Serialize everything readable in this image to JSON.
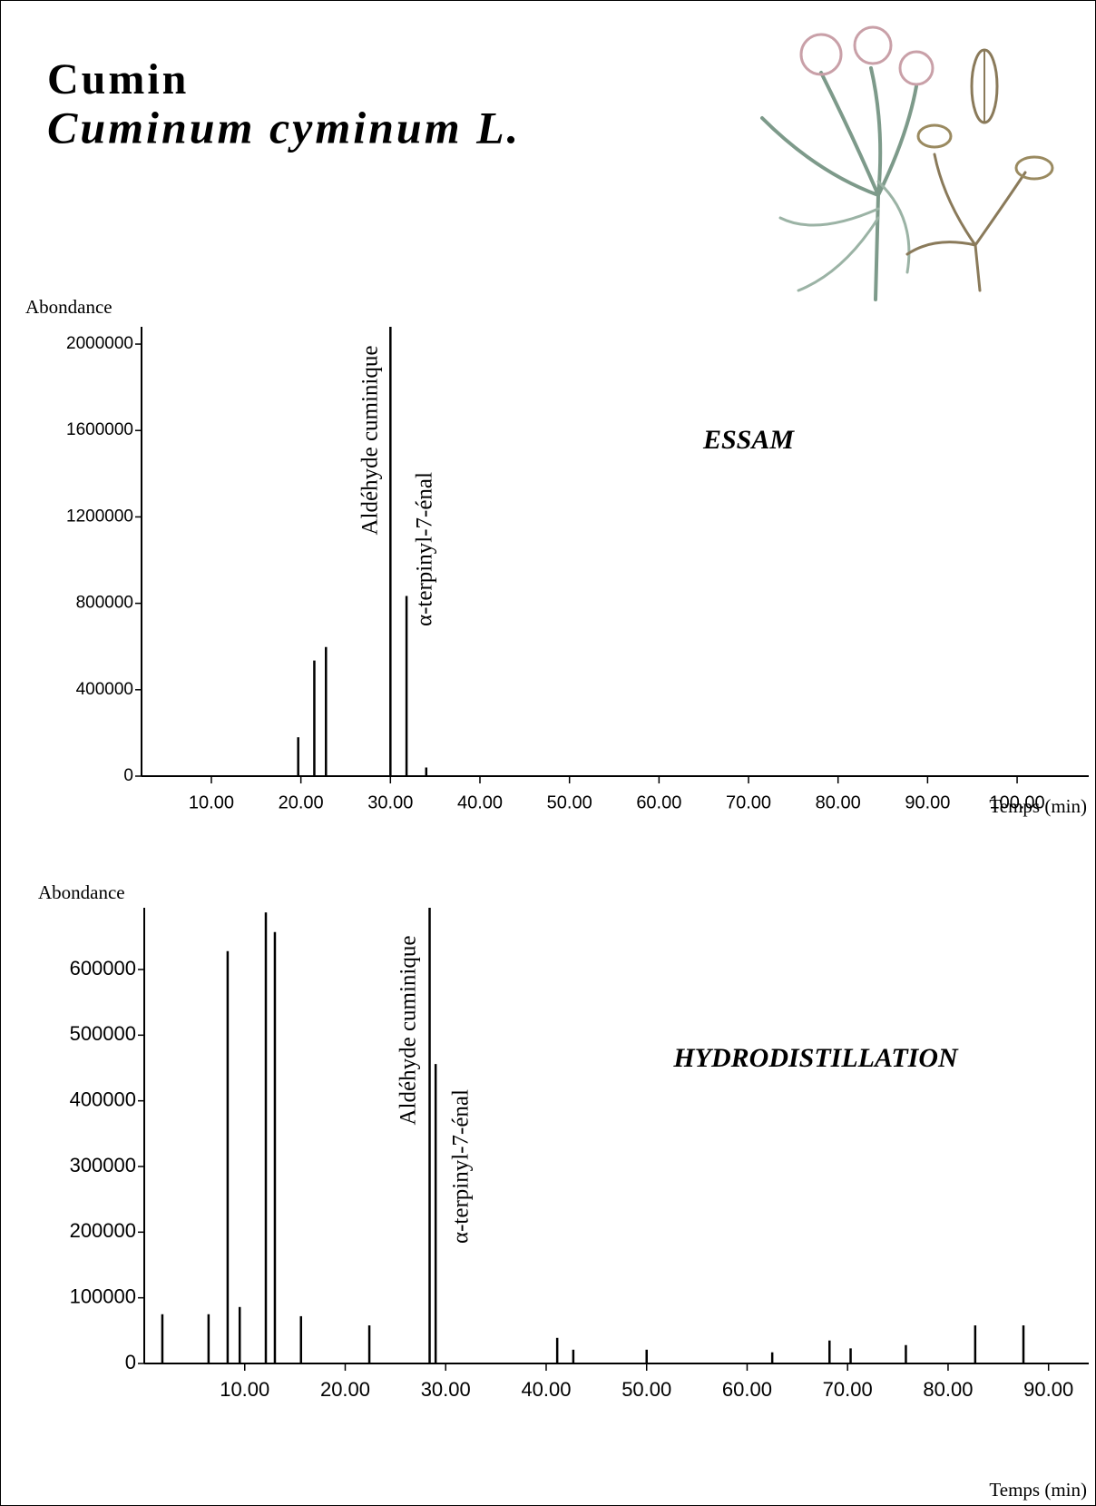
{
  "header": {
    "title": "Cumin",
    "subtitle": "Cuminum cyminum L."
  },
  "chart_data": [
    {
      "type": "spike",
      "label": "ESSAM",
      "y_label": "Abondance",
      "x_label": "Temps (min)",
      "annotations": [
        "Aldéhyde cuminique",
        "α-terpinyl-7-énal"
      ],
      "x": [
        19.7,
        21.5,
        22.8,
        30.0,
        31.8,
        34.0
      ],
      "values": [
        180000,
        535000,
        598000,
        2080000,
        834000,
        40000
      ],
      "color": "#000000",
      "xlim": [
        2.2,
        108
      ],
      "ylim": [
        0,
        2080000
      ],
      "xticks": [
        {
          "value": 10,
          "label": "10.00"
        },
        {
          "value": 20,
          "label": "20.00"
        },
        {
          "value": 30,
          "label": "30.00"
        },
        {
          "value": 40,
          "label": "40.00"
        },
        {
          "value": 50,
          "label": "50.00"
        },
        {
          "value": 60,
          "label": "60.00"
        },
        {
          "value": 70,
          "label": "70.00"
        },
        {
          "value": 80,
          "label": "80.00"
        },
        {
          "value": 90,
          "label": "90.00"
        },
        {
          "value": 100,
          "label": "100.00"
        }
      ],
      "yticks": [
        0,
        400000,
        800000,
        1200000,
        1600000,
        2000000
      ]
    },
    {
      "type": "spike",
      "label": "HYDRODISTILLATION",
      "y_label": "Abondance",
      "x_label": "Temps (min)",
      "annotations": [
        "Aldéhyde cuminique",
        "α-terpinyl-7-énal"
      ],
      "x": [
        1.8,
        6.4,
        8.3,
        9.5,
        12.1,
        13.0,
        15.6,
        22.4,
        28.4,
        29.0,
        41.1,
        42.7,
        50.0,
        62.5,
        68.2,
        70.3,
        75.8,
        82.7,
        87.5
      ],
      "values": [
        75000,
        75000,
        628000,
        86000,
        687000,
        657000,
        72000,
        58000,
        694000,
        456000,
        39000,
        21000,
        21000,
        17000,
        35000,
        23000,
        28000,
        58000,
        58000
      ],
      "color": "#000000",
      "xlim": [
        0,
        94
      ],
      "ylim": [
        0,
        694000
      ],
      "xticks": [
        {
          "value": 10,
          "label": "10.00"
        },
        {
          "value": 20,
          "label": "20.00"
        },
        {
          "value": 30,
          "label": "30.00"
        },
        {
          "value": 40,
          "label": "40.00"
        },
        {
          "value": 50,
          "label": "50.00"
        },
        {
          "value": 60,
          "label": "60.00"
        },
        {
          "value": 70,
          "label": "70.00"
        },
        {
          "value": 80,
          "label": "80.00"
        },
        {
          "value": 90,
          "label": "90.00"
        }
      ],
      "yticks": [
        0,
        100000,
        200000,
        300000,
        400000,
        500000,
        600000
      ]
    }
  ]
}
